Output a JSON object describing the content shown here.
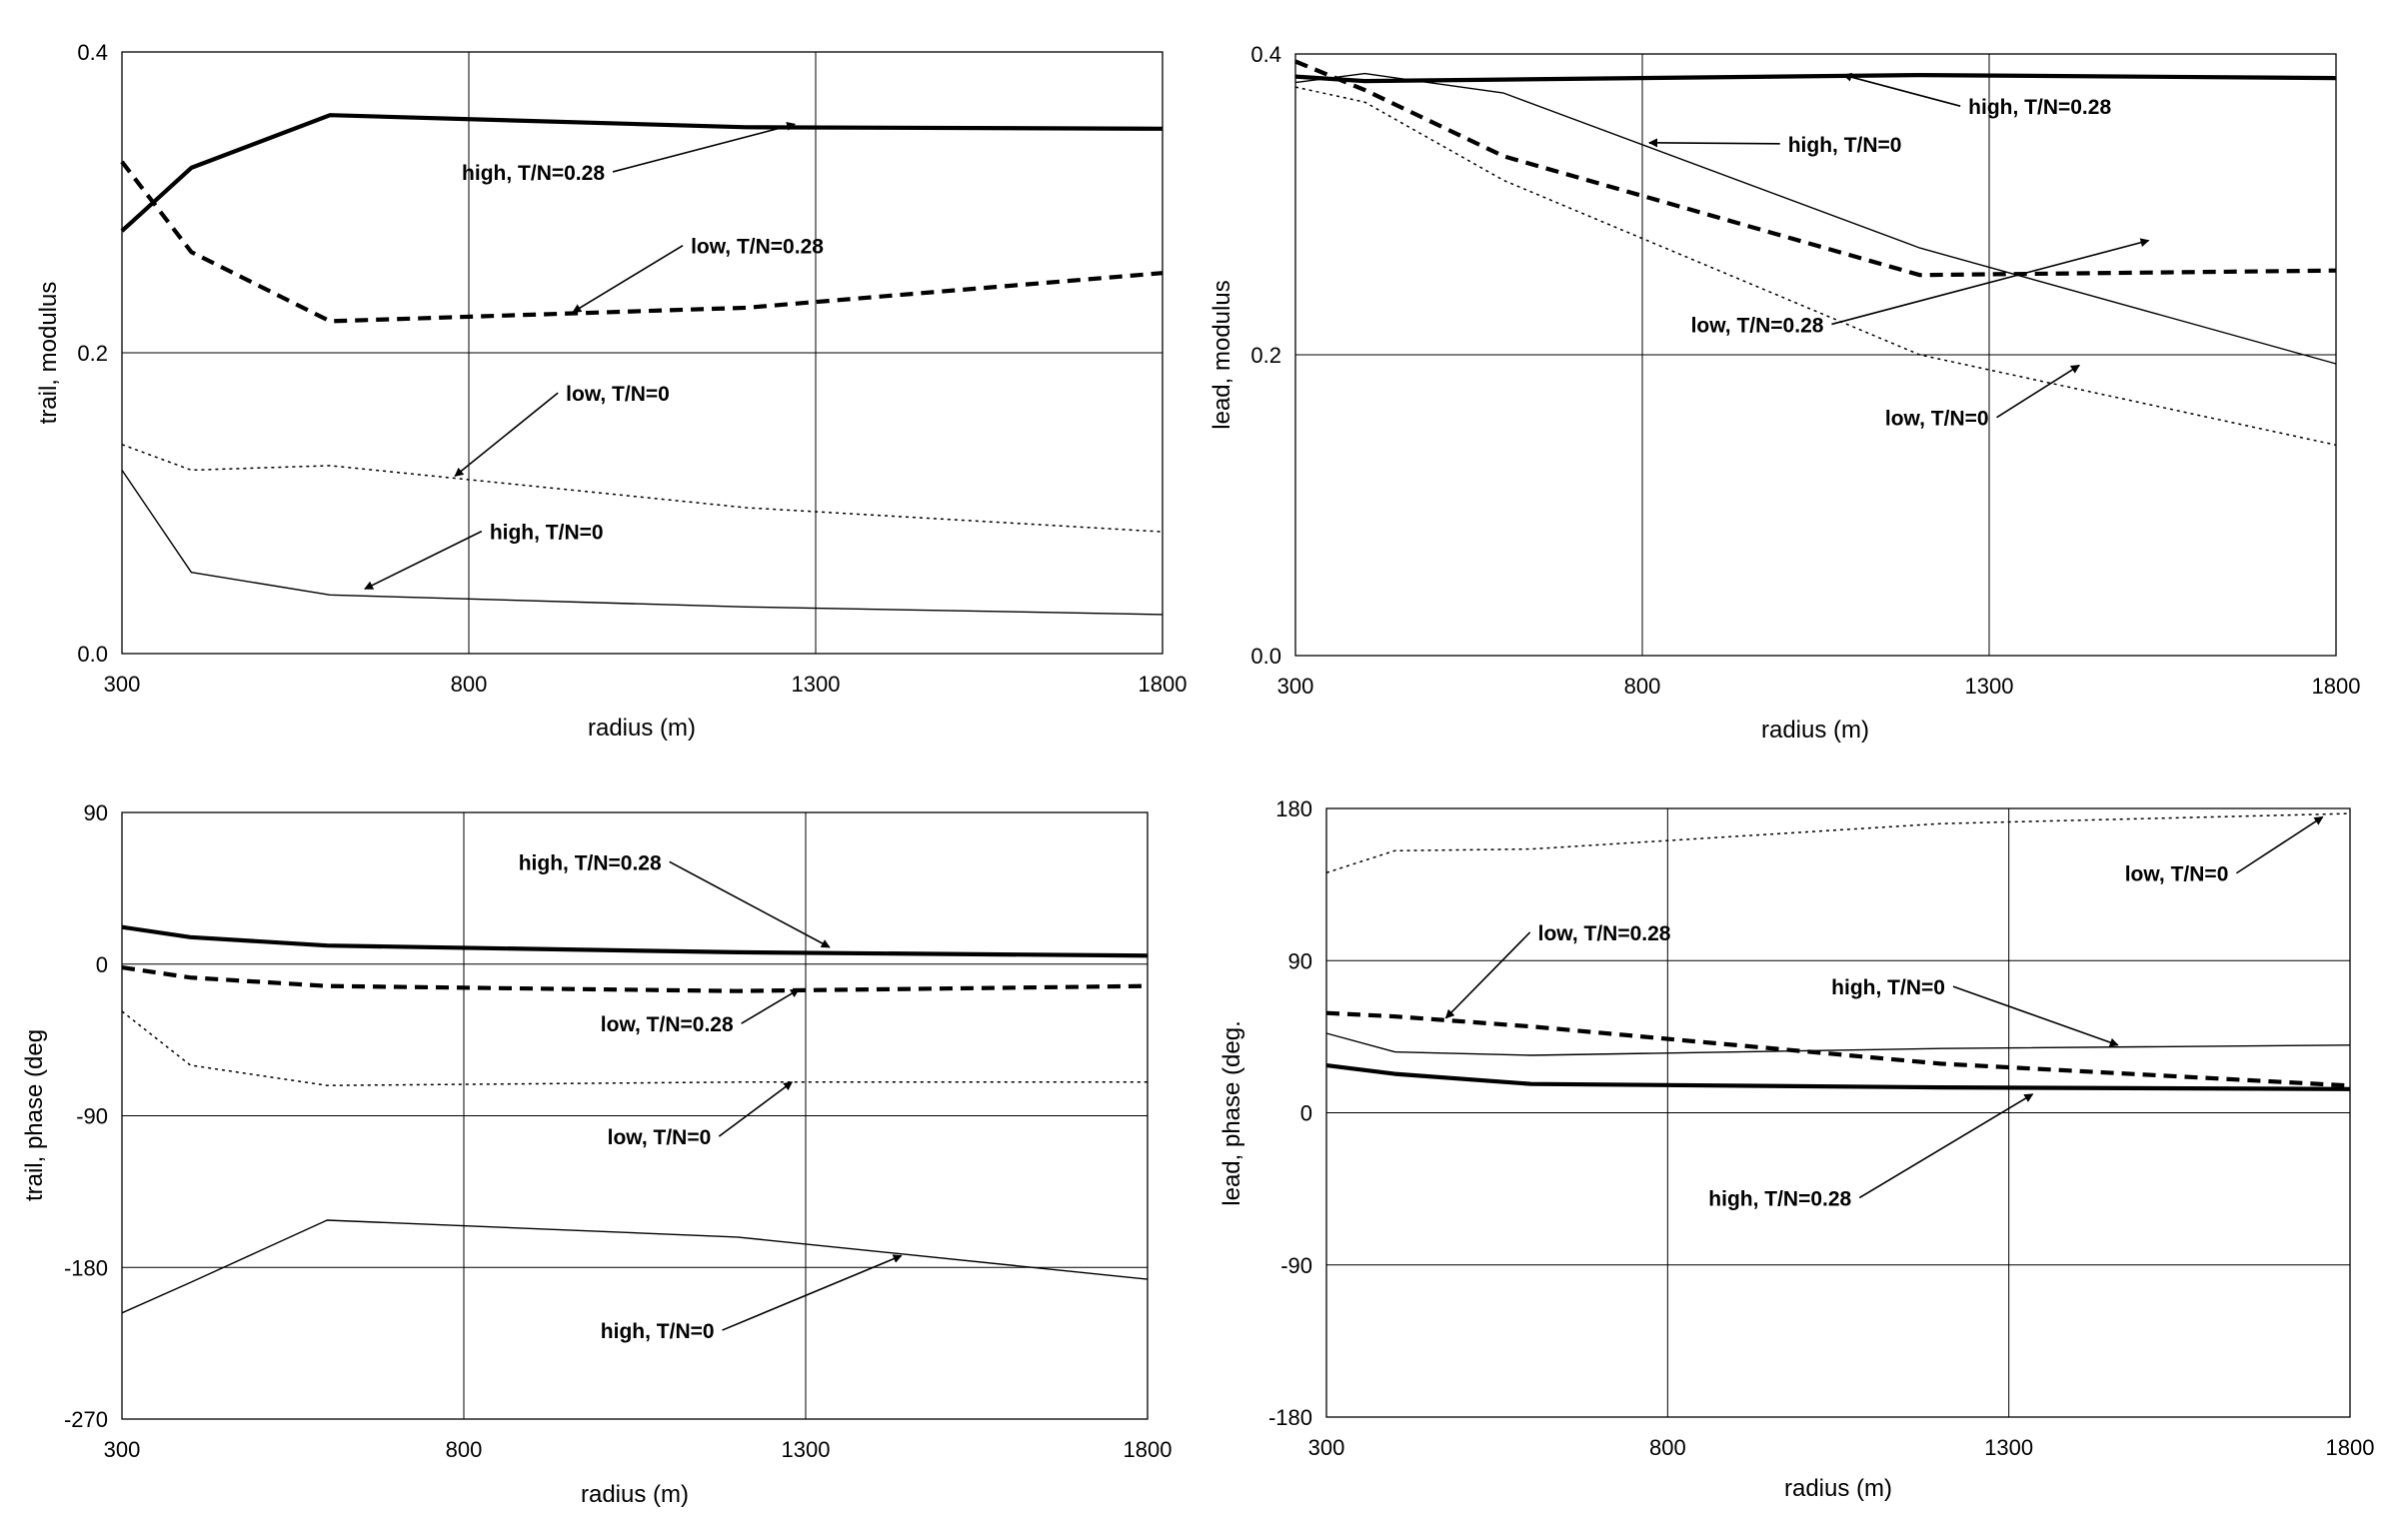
{
  "chart_data": [
    {
      "type": "line",
      "xlabel": "radius (m)",
      "ylabel": "trail, modulus",
      "xlim": [
        300,
        1800
      ],
      "ylim": [
        0.0,
        0.4
      ],
      "xticks": [
        "300",
        "800",
        "1300",
        "1800"
      ],
      "yticks": [
        "0.0",
        "0.2",
        "0.4"
      ],
      "grid": true,
      "series": [
        {
          "name": "high, T/N=0.28",
          "style": "thick-solid",
          "x": [
            300,
            400,
            600,
            1200,
            1800
          ],
          "y": [
            0.281,
            0.323,
            0.358,
            0.35,
            0.349
          ]
        },
        {
          "name": "low, T/N=0.28",
          "style": "thick-dashed",
          "x": [
            300,
            400,
            600,
            1200,
            1800
          ],
          "y": [
            0.327,
            0.267,
            0.221,
            0.23,
            0.253
          ]
        },
        {
          "name": "low, T/N=0",
          "style": "thin-dotted",
          "x": [
            300,
            400,
            600,
            1200,
            1800
          ],
          "y": [
            0.139,
            0.122,
            0.125,
            0.097,
            0.081
          ]
        },
        {
          "name": "high, T/N=0",
          "style": "thin-solid",
          "x": [
            300,
            400,
            600,
            1200,
            1800
          ],
          "y": [
            0.122,
            0.054,
            0.039,
            0.031,
            0.026
          ]
        }
      ],
      "annotations": [
        {
          "text": "high, T/N=0.28",
          "tx": 790,
          "ty": 0.315,
          "ax": 1270,
          "ay": 0.352
        },
        {
          "text": "low, T/N=0.28",
          "tx": 1120,
          "ty": 0.266,
          "ax": 950,
          "ay": 0.227
        },
        {
          "text": "low, T/N=0",
          "tx": 940,
          "ty": 0.168,
          "ax": 780,
          "ay": 0.118
        },
        {
          "text": "high, T/N=0",
          "tx": 830,
          "ty": 0.076,
          "ax": 650,
          "ay": 0.043
        }
      ]
    },
    {
      "type": "line",
      "xlabel": "radius (m)",
      "ylabel": "lead, modulus",
      "xlim": [
        300,
        1800
      ],
      "ylim": [
        0.0,
        0.4
      ],
      "xticks": [
        "300",
        "800",
        "1300",
        "1800"
      ],
      "yticks": [
        "0.0",
        "0.2",
        "0.4"
      ],
      "grid": true,
      "series": [
        {
          "name": "high, T/N=0.28",
          "style": "thick-solid",
          "x": [
            300,
            400,
            600,
            1200,
            1800
          ],
          "y": [
            0.385,
            0.382,
            0.383,
            0.386,
            0.384
          ]
        },
        {
          "name": "low, T/N=0.28",
          "style": "thick-dashed",
          "x": [
            300,
            400,
            600,
            1200,
            1800
          ],
          "y": [
            0.395,
            0.376,
            0.332,
            0.253,
            0.256
          ]
        },
        {
          "name": "high, T/N=0",
          "style": "thin-solid",
          "x": [
            300,
            400,
            600,
            1200,
            1800
          ],
          "y": [
            0.381,
            0.387,
            0.374,
            0.271,
            0.194
          ]
        },
        {
          "name": "low, T/N=0",
          "style": "thin-dotted",
          "x": [
            300,
            400,
            600,
            1200,
            1800
          ],
          "y": [
            0.378,
            0.368,
            0.316,
            0.2,
            0.14
          ]
        }
      ],
      "annotations": [
        {
          "text": "high, T/N=0.28",
          "tx": 1270,
          "ty": 0.36,
          "ax": 1090,
          "ay": 0.386
        },
        {
          "text": "high, T/N=0",
          "tx": 1010,
          "ty": 0.335,
          "ax": 810,
          "ay": 0.341
        },
        {
          "text": "low, T/N=0.28",
          "tx": 870,
          "ty": 0.215,
          "ax": 1530,
          "ay": 0.276
        },
        {
          "text": "low, T/N=0",
          "tx": 1150,
          "ty": 0.153,
          "ax": 1430,
          "ay": 0.193
        }
      ]
    },
    {
      "type": "line",
      "xlabel": "radius (m)",
      "ylabel": "trail, phase (deg",
      "xlim": [
        300,
        1800
      ],
      "ylim": [
        -270,
        90
      ],
      "xticks": [
        "300",
        "800",
        "1300",
        "1800"
      ],
      "yticks": [
        "-270",
        "-180",
        "-90",
        "0",
        "90"
      ],
      "grid": true,
      "series": [
        {
          "name": "high, T/N=0.28",
          "style": "thick-solid",
          "x": [
            300,
            400,
            600,
            1200,
            1800
          ],
          "y": [
            22,
            16,
            11,
            7,
            5
          ]
        },
        {
          "name": "low, T/N=0.28",
          "style": "thick-dashed",
          "x": [
            300,
            400,
            600,
            1200,
            1800
          ],
          "y": [
            -2,
            -8,
            -13,
            -16,
            -13
          ]
        },
        {
          "name": "low, T/N=0",
          "style": "thin-dotted",
          "x": [
            300,
            400,
            600,
            1200,
            1800
          ],
          "y": [
            -28,
            -60,
            -72,
            -70,
            -70
          ]
        },
        {
          "name": "high, T/N=0",
          "style": "thin-solid",
          "x": [
            300,
            400,
            600,
            1200,
            1800
          ],
          "y": [
            -207,
            -189,
            -152,
            -162,
            -187
          ]
        }
      ],
      "annotations": [
        {
          "text": "high, T/N=0.28",
          "tx": 880,
          "ty": 56,
          "ax": 1335,
          "ay": 10
        },
        {
          "text": "low, T/N=0.28",
          "tx": 1000,
          "ty": -40,
          "ax": 1290,
          "ay": -15
        },
        {
          "text": "low, T/N=0",
          "tx": 1010,
          "ty": -107,
          "ax": 1280,
          "ay": -70
        },
        {
          "text": "high, T/N=0",
          "tx": 1000,
          "ty": -222,
          "ax": 1440,
          "ay": -173
        }
      ]
    },
    {
      "type": "line",
      "xlabel": "radius (m)",
      "ylabel": "lead, phase (deg.",
      "xlim": [
        300,
        1800
      ],
      "ylim": [
        -180,
        180
      ],
      "xticks": [
        "300",
        "800",
        "1300",
        "1800"
      ],
      "yticks": [
        "-180",
        "-90",
        "0",
        "90",
        "180"
      ],
      "grid": true,
      "series": [
        {
          "name": "low, T/N=0",
          "style": "thin-dotted",
          "x": [
            300,
            400,
            600,
            1200,
            1800
          ],
          "y": [
            142,
            155,
            156,
            171,
            177
          ]
        },
        {
          "name": "low, T/N=0.28",
          "style": "thick-dashed",
          "x": [
            300,
            400,
            600,
            1200,
            1800
          ],
          "y": [
            59,
            57,
            51,
            29,
            16
          ]
        },
        {
          "name": "high, T/N=0",
          "style": "thin-solid",
          "x": [
            300,
            400,
            600,
            1200,
            1800
          ],
          "y": [
            47,
            36,
            34,
            38,
            40
          ]
        },
        {
          "name": "high, T/N=0.28",
          "style": "thick-solid",
          "x": [
            300,
            400,
            600,
            1200,
            1800
          ],
          "y": [
            28,
            23,
            17,
            15,
            14
          ]
        }
      ],
      "annotations": [
        {
          "text": "low, T/N=0",
          "tx": 1470,
          "ty": 137,
          "ax": 1760,
          "ay": 175
        },
        {
          "text": "low, T/N=0.28",
          "tx": 610,
          "ty": 102,
          "ax": 475,
          "ay": 56
        },
        {
          "text": "high, T/N=0",
          "tx": 1040,
          "ty": 70,
          "ax": 1460,
          "ay": 40
        },
        {
          "text": "high, T/N=0.28",
          "tx": 860,
          "ty": -55,
          "ax": 1335,
          "ay": 11
        }
      ]
    }
  ]
}
